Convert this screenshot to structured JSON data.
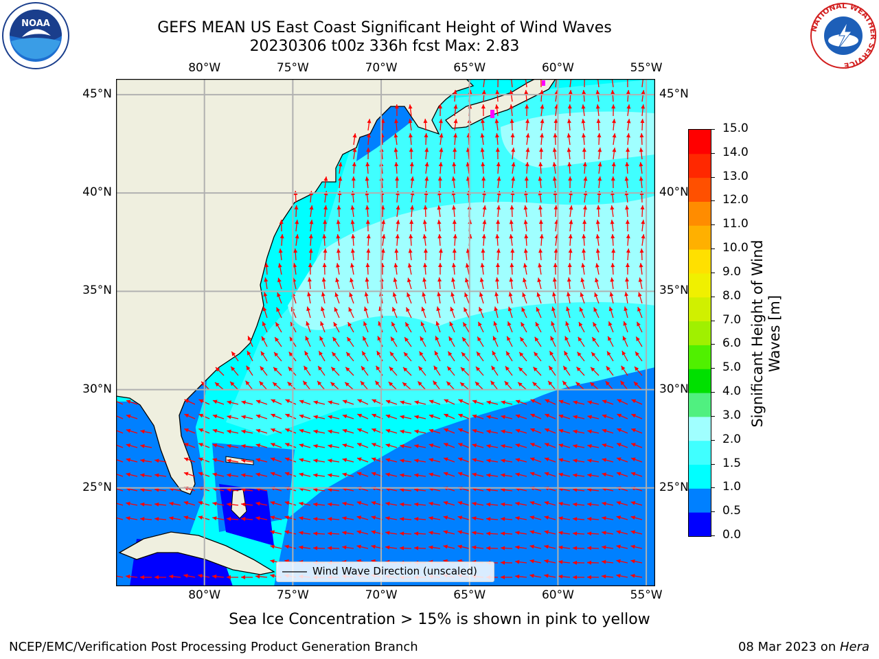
{
  "title": {
    "line1": "GEFS MEAN US East Coast Significant Height of Wind Waves",
    "line2": "20230306 t00z 336h fcst   Max: 2.83"
  },
  "logos": {
    "left": "NOAA",
    "right": "NATIONAL WEATHER SERVICE"
  },
  "axes": {
    "lon_ticks": [
      "80°W",
      "75°W",
      "70°W",
      "65°W",
      "60°W",
      "55°W"
    ],
    "lon_values": [
      -80,
      -75,
      -70,
      -65,
      -60,
      -55
    ],
    "lat_ticks": [
      "45°N",
      "40°N",
      "35°N",
      "30°N",
      "25°N"
    ],
    "lat_values": [
      45,
      40,
      35,
      30,
      25
    ],
    "lon_range": [
      -85,
      -54.5
    ],
    "lat_range": [
      20,
      45.8
    ]
  },
  "colorbar": {
    "label": "Significant Height of Wind Waves [m]",
    "label_line1": "Significant Height of Wind",
    "label_line2": "Waves [m]",
    "ticks": [
      "15.0",
      "14.0",
      "13.0",
      "12.0",
      "11.0",
      "10.0",
      "9.0",
      "8.0",
      "7.0",
      "6.0",
      "5.0",
      "4.0",
      "3.0",
      "2.0",
      "1.5",
      "1.0",
      "0.5",
      "0.0"
    ],
    "levels": [
      0.0,
      0.5,
      1.0,
      1.5,
      2.0,
      3.0,
      4.0,
      5.0,
      6.0,
      7.0,
      8.0,
      9.0,
      10.0,
      11.0,
      12.0,
      13.0,
      14.0,
      15.0
    ],
    "colors": [
      "#0000ff",
      "#0080ff",
      "#00ffff",
      "#40ffff",
      "#a0ffff",
      "#50f080",
      "#00e000",
      "#50f000",
      "#a0f000",
      "#d0f000",
      "#f0f000",
      "#ffe000",
      "#ffb000",
      "#ff8c00",
      "#ff5000",
      "#ff2800",
      "#ff0000"
    ]
  },
  "legend": {
    "label": "Wind Wave Direction (unscaled)"
  },
  "caption": "Sea Ice Concentration > 15% is shown in pink to yellow",
  "footer": {
    "left": "NCEP/EMC/Verification Post Processing Product Generation Branch",
    "date": "08 Mar 2023 on ",
    "host": "Hera"
  },
  "colors": {
    "land": "#efefdf",
    "arrow": "#ff0000",
    "grid": "#b0b0b0",
    "sea_ice": "#ff00ff"
  }
}
